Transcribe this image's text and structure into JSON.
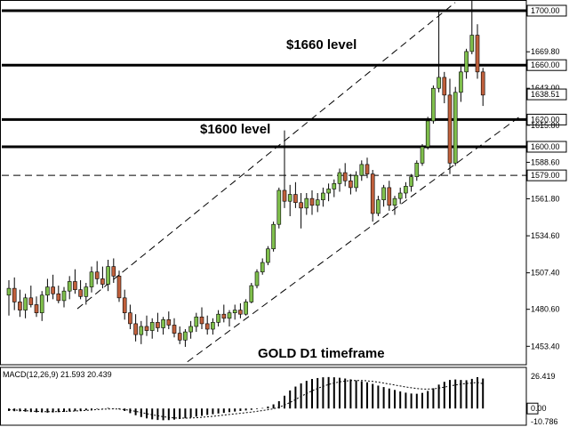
{
  "chart_data": [
    {
      "type": "candlestick",
      "title": "GOLD D1 timeframe",
      "ylim": [
        1440,
        1712
      ],
      "y_ticks": [
        {
          "value": 1700.0,
          "label": "1700.00",
          "tagged": true
        },
        {
          "value": 1669.8,
          "label": "1669.80",
          "tagged": false
        },
        {
          "value": 1660.0,
          "label": "1660.00",
          "tagged": true
        },
        {
          "value": 1643.0,
          "label": "1643.00",
          "tagged": false
        },
        {
          "value": 1638.51,
          "label": "1638.51",
          "tagged": true
        },
        {
          "value": 1620.0,
          "label": "1620.00",
          "tagged": true
        },
        {
          "value": 1615.8,
          "label": "1615.80",
          "tagged": false
        },
        {
          "value": 1600.0,
          "label": "1600.00",
          "tagged": true
        },
        {
          "value": 1588.6,
          "label": "1588.60",
          "tagged": false
        },
        {
          "value": 1579.0,
          "label": "1579.00",
          "tagged": true
        },
        {
          "value": 1561.8,
          "label": "1561.80",
          "tagged": false
        },
        {
          "value": 1534.6,
          "label": "1534.60",
          "tagged": false
        },
        {
          "value": 1507.4,
          "label": "1507.40",
          "tagged": false
        },
        {
          "value": 1480.6,
          "label": "1480.60",
          "tagged": false
        },
        {
          "value": 1453.4,
          "label": "1453.40",
          "tagged": false
        }
      ],
      "horizontal_levels": [
        {
          "value": 1700,
          "style": "solid"
        },
        {
          "value": 1660,
          "style": "solid"
        },
        {
          "value": 1620,
          "style": "solid"
        },
        {
          "value": 1600,
          "style": "solid"
        },
        {
          "value": 1579,
          "style": "dashed"
        }
      ],
      "channel_lines": [
        {
          "from": [
            21,
            1481
          ],
          "to": [
            124,
            1706
          ]
        },
        {
          "from": [
            51,
            1442
          ],
          "to": [
            142,
            1623
          ]
        }
      ],
      "annotations": [
        {
          "text": "$1660 level",
          "near_value": 1665
        },
        {
          "text": "$1600 level",
          "near_value": 1604
        },
        {
          "text": "GOLD D1 timeframe",
          "near_value": 1451
        }
      ],
      "candles": [
        [
          1491,
          1502,
          1476,
          1496
        ],
        [
          1496,
          1504,
          1480,
          1486
        ],
        [
          1486,
          1495,
          1475,
          1480
        ],
        [
          1480,
          1492,
          1474,
          1489
        ],
        [
          1489,
          1498,
          1482,
          1484
        ],
        [
          1484,
          1490,
          1475,
          1478
        ],
        [
          1478,
          1494,
          1472,
          1491
        ],
        [
          1491,
          1503,
          1486,
          1497
        ],
        [
          1497,
          1506,
          1488,
          1492
        ],
        [
          1492,
          1498,
          1485,
          1487
        ],
        [
          1487,
          1497,
          1482,
          1494
        ],
        [
          1494,
          1505,
          1488,
          1501
        ],
        [
          1501,
          1510,
          1492,
          1495
        ],
        [
          1495,
          1502,
          1488,
          1490
        ],
        [
          1490,
          1500,
          1484,
          1497
        ],
        [
          1497,
          1512,
          1493,
          1508
        ],
        [
          1508,
          1516,
          1499,
          1503
        ],
        [
          1503,
          1512,
          1496,
          1499
        ],
        [
          1499,
          1517,
          1494,
          1512
        ],
        [
          1512,
          1518,
          1500,
          1505
        ],
        [
          1505,
          1509,
          1486,
          1489
        ],
        [
          1489,
          1495,
          1473,
          1478
        ],
        [
          1478,
          1484,
          1466,
          1470
        ],
        [
          1470,
          1477,
          1457,
          1462
        ],
        [
          1462,
          1472,
          1455,
          1468
        ],
        [
          1468,
          1476,
          1461,
          1465
        ],
        [
          1465,
          1474,
          1459,
          1471
        ],
        [
          1471,
          1478,
          1464,
          1467
        ],
        [
          1467,
          1475,
          1462,
          1473
        ],
        [
          1473,
          1479,
          1466,
          1469
        ],
        [
          1469,
          1474,
          1460,
          1463
        ],
        [
          1463,
          1468,
          1455,
          1458
        ],
        [
          1458,
          1466,
          1453,
          1464
        ],
        [
          1464,
          1472,
          1459,
          1468
        ],
        [
          1468,
          1478,
          1464,
          1475
        ],
        [
          1475,
          1482,
          1466,
          1470
        ],
        [
          1470,
          1476,
          1462,
          1466
        ],
        [
          1466,
          1474,
          1462,
          1471
        ],
        [
          1471,
          1480,
          1468,
          1477
        ],
        [
          1477,
          1484,
          1471,
          1474
        ],
        [
          1474,
          1480,
          1468,
          1478
        ],
        [
          1478,
          1484,
          1473,
          1480
        ],
        [
          1480,
          1485,
          1474,
          1477
        ],
        [
          1477,
          1488,
          1476,
          1486
        ],
        [
          1486,
          1500,
          1485,
          1498
        ],
        [
          1498,
          1510,
          1496,
          1508
        ],
        [
          1508,
          1518,
          1506,
          1515
        ],
        [
          1515,
          1527,
          1513,
          1525
        ],
        [
          1525,
          1545,
          1523,
          1543
        ],
        [
          1543,
          1570,
          1540,
          1568
        ],
        [
          1568,
          1612,
          1555,
          1560
        ],
        [
          1560,
          1572,
          1549,
          1565
        ],
        [
          1565,
          1574,
          1555,
          1559
        ],
        [
          1559,
          1566,
          1540,
          1555
        ],
        [
          1555,
          1566,
          1550,
          1562
        ],
        [
          1562,
          1568,
          1550,
          1557
        ],
        [
          1557,
          1566,
          1552,
          1561
        ],
        [
          1561,
          1570,
          1556,
          1566
        ],
        [
          1566,
          1573,
          1560,
          1569
        ],
        [
          1569,
          1576,
          1563,
          1573
        ],
        [
          1573,
          1584,
          1567,
          1581
        ],
        [
          1581,
          1588,
          1571,
          1575
        ],
        [
          1575,
          1580,
          1565,
          1570
        ],
        [
          1570,
          1582,
          1567,
          1579
        ],
        [
          1579,
          1590,
          1575,
          1587
        ],
        [
          1587,
          1592,
          1577,
          1580
        ],
        [
          1580,
          1583,
          1545,
          1551
        ],
        [
          1551,
          1564,
          1549,
          1561
        ],
        [
          1561,
          1572,
          1556,
          1570
        ],
        [
          1570,
          1575,
          1553,
          1557
        ],
        [
          1557,
          1564,
          1550,
          1562
        ],
        [
          1562,
          1570,
          1558,
          1566
        ],
        [
          1566,
          1574,
          1562,
          1571
        ],
        [
          1571,
          1580,
          1567,
          1578
        ],
        [
          1578,
          1590,
          1575,
          1588
        ],
        [
          1588,
          1602,
          1586,
          1600
        ],
        [
          1600,
          1622,
          1598,
          1619
        ],
        [
          1619,
          1645,
          1617,
          1643
        ],
        [
          1643,
          1700,
          1640,
          1651
        ],
        [
          1651,
          1655,
          1632,
          1638
        ],
        [
          1638,
          1650,
          1580,
          1588
        ],
        [
          1588,
          1644,
          1586,
          1640
        ],
        [
          1640,
          1659,
          1633,
          1655
        ],
        [
          1655,
          1672,
          1650,
          1670
        ],
        [
          1670,
          1710,
          1668,
          1682
        ],
        [
          1682,
          1690,
          1650,
          1655
        ],
        [
          1655,
          1658,
          1630,
          1638
        ]
      ],
      "macd": {
        "label": "MACD(12,26,9)",
        "main": 21.593,
        "signal": 20.439,
        "ylim": [
          -10.786,
          26.419
        ],
        "y_ticks": [
          {
            "value": 26.419,
            "label": "26.419",
            "tagged": false
          },
          {
            "value": 0.0,
            "label": "0.00",
            "tagged": true
          },
          {
            "value": -10.786,
            "label": "-10.786",
            "tagged": false
          }
        ],
        "histogram": [
          -2.0,
          -2.2,
          -2.4,
          -2.6,
          -2.9,
          -3.1,
          -3.2,
          -3.4,
          -3.2,
          -3.0,
          -2.8,
          -2.5,
          -2.2,
          -1.8,
          -1.4,
          -0.9,
          -0.4,
          0.2,
          0.5,
          0.2,
          -0.6,
          -2.0,
          -3.8,
          -5.5,
          -7.0,
          -8.1,
          -8.9,
          -9.4,
          -9.6,
          -9.5,
          -9.1,
          -8.6,
          -8.0,
          -7.4,
          -6.7,
          -6.0,
          -5.3,
          -4.7,
          -4.1,
          -3.6,
          -3.0,
          -2.5,
          -2.0,
          -1.6,
          -1.1,
          -0.5,
          0.4,
          1.6,
          3.4,
          6.0,
          10.5,
          14.8,
          18.0,
          20.6,
          22.7,
          24.2,
          25.0,
          25.6,
          25.8,
          25.6,
          25.2,
          24.6,
          23.9,
          23.1,
          22.3,
          21.5,
          20.2,
          18.8,
          17.6,
          16.4,
          15.2,
          14.0,
          13.0,
          12.3,
          12.1,
          12.8,
          14.4,
          16.6,
          19.6,
          21.9,
          23.4,
          23.8,
          23.4,
          23.2,
          24.3,
          25.7,
          24.6
        ],
        "signal_line": [
          -1.0,
          -1.2,
          -1.5,
          -1.8,
          -2.1,
          -2.3,
          -2.5,
          -2.6,
          -2.6,
          -2.5,
          -2.4,
          -2.2,
          -2.0,
          -1.8,
          -1.5,
          -1.2,
          -0.9,
          -0.6,
          -0.4,
          -0.3,
          -0.5,
          -0.9,
          -1.5,
          -2.3,
          -3.2,
          -4.2,
          -5.1,
          -6.0,
          -6.7,
          -7.3,
          -7.7,
          -7.9,
          -7.9,
          -7.8,
          -7.6,
          -7.2,
          -6.8,
          -6.4,
          -5.9,
          -5.4,
          -4.9,
          -4.4,
          -3.9,
          -3.4,
          -2.9,
          -2.3,
          -1.7,
          -1.0,
          -0.2,
          1.0,
          2.8,
          5.0,
          7.4,
          9.9,
          12.3,
          14.5,
          16.5,
          18.2,
          19.7,
          20.9,
          21.8,
          22.5,
          22.9,
          23.0,
          23.0,
          22.7,
          22.2,
          21.6,
          20.9,
          20.1,
          19.3,
          18.5,
          17.7,
          17.0,
          16.4,
          16.0,
          15.9,
          16.1,
          16.7,
          17.5,
          18.4,
          19.3,
          20.0,
          20.5,
          20.9,
          21.4,
          20.4
        ]
      }
    }
  ],
  "colors": {
    "bull_candle": "#7fbf4c",
    "bear_candle": "#c0603c",
    "wick": "#000000",
    "grid": "#000000",
    "background": "#ffffff"
  }
}
